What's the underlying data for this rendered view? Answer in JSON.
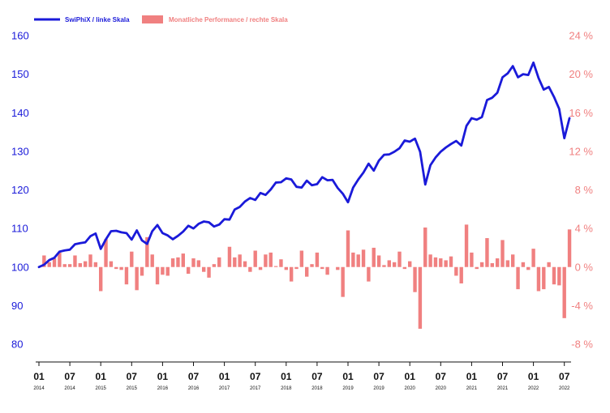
{
  "chart_data": {
    "type": "line+bar",
    "legend": {
      "placement": "top-left",
      "line_label": "SwiPhiX / linke Skala",
      "bar_label": "Monatliche Performance / rechte Skala"
    },
    "colors": {
      "line": "#1a1ad9",
      "bars": "#f08080",
      "axis": "#111111"
    },
    "y_left": {
      "min": 80,
      "max": 160,
      "ticks": [
        "80",
        "90",
        "100",
        "110",
        "120",
        "130",
        "140",
        "150",
        "160"
      ]
    },
    "y_right": {
      "min": -8,
      "max": 24,
      "unit": "%",
      "ticks": [
        "-8 %",
        "-4 %",
        "0 %",
        "4 %",
        "8 %",
        "12 %",
        "16 %",
        "20 %",
        "24 %"
      ]
    },
    "x_ticks": [
      {
        "month": "01",
        "year": "2014"
      },
      {
        "month": "07",
        "year": "2014"
      },
      {
        "month": "01",
        "year": "2015"
      },
      {
        "month": "07",
        "year": "2015"
      },
      {
        "month": "01",
        "year": "2016"
      },
      {
        "month": "07",
        "year": "2016"
      },
      {
        "month": "01",
        "year": "2017"
      },
      {
        "month": "07",
        "year": "2017"
      },
      {
        "month": "01",
        "year": "2018"
      },
      {
        "month": "07",
        "year": "2018"
      },
      {
        "month": "01",
        "year": "2019"
      },
      {
        "month": "07",
        "year": "2019"
      },
      {
        "month": "01",
        "year": "2020"
      },
      {
        "month": "07",
        "year": "2020"
      },
      {
        "month": "01",
        "year": "2021"
      },
      {
        "month": "07",
        "year": "2021"
      },
      {
        "month": "01",
        "year": "2022"
      },
      {
        "month": "07",
        "year": "2022"
      }
    ],
    "series": [
      {
        "name": "SwiPhiX / linke Skala",
        "axis": "left",
        "values": [
          100.0,
          100.6,
          101.8,
          102.4,
          104.0,
          104.3,
          104.5,
          105.9,
          106.2,
          106.4,
          108.0,
          108.7,
          104.7,
          107.2,
          109.3,
          109.4,
          109.0,
          108.8,
          107.1,
          109.5,
          106.9,
          106.0,
          109.3,
          110.9,
          108.8,
          108.2,
          107.2,
          108.1,
          109.2,
          110.7,
          110.0,
          111.2,
          111.8,
          111.6,
          110.5,
          111.0,
          112.4,
          112.3,
          114.9,
          115.6,
          117.0,
          117.9,
          117.4,
          119.2,
          118.7,
          120.1,
          121.9,
          122.0,
          123.0,
          122.7,
          120.8,
          120.6,
          122.4,
          121.2,
          121.5,
          123.3,
          122.5,
          122.6,
          120.5,
          119.0,
          116.8,
          120.6,
          122.7,
          124.5,
          126.8,
          125.0,
          127.6,
          129.1,
          129.2,
          129.9,
          130.8,
          132.8,
          132.5,
          133.3,
          129.9,
          121.4,
          126.4,
          128.4,
          129.9,
          131.0,
          131.9,
          132.7,
          131.5,
          136.6,
          138.6,
          138.2,
          138.9,
          143.3,
          143.9,
          145.2,
          149.2,
          150.2,
          152.1,
          149.2,
          150.0,
          149.8,
          153.0,
          149.0,
          146.0,
          146.7,
          144.1,
          141.0,
          133.4,
          138.6
        ]
      },
      {
        "name": "Monatliche Performance / rechte Skala",
        "axis": "right",
        "values": [
          0.0,
          1.2,
          0.5,
          0.9,
          1.5,
          0.3,
          0.3,
          1.2,
          0.4,
          0.6,
          1.3,
          0.5,
          -2.5,
          2.9,
          0.6,
          -0.2,
          -0.3,
          -1.8,
          1.6,
          -2.4,
          -0.9,
          3.1,
          1.3,
          -1.8,
          -0.8,
          -0.9,
          0.9,
          1.0,
          1.4,
          -0.7,
          0.9,
          0.7,
          -0.5,
          -1.1,
          0.3,
          1.0,
          0.0,
          2.1,
          1.0,
          1.3,
          0.6,
          -0.5,
          1.7,
          -0.3,
          1.3,
          1.5,
          0.1,
          0.8,
          -0.3,
          -1.5,
          -0.2,
          1.7,
          -1.0,
          0.3,
          1.5,
          -0.2,
          -0.8,
          0.0,
          -0.3,
          -3.1,
          3.8,
          1.5,
          1.3,
          1.8,
          -1.5,
          2.0,
          1.2,
          0.2,
          0.7,
          0.5,
          1.6,
          -0.2,
          0.6,
          -2.6,
          -6.4,
          4.1,
          1.3,
          1.0,
          0.9,
          0.7,
          1.1,
          -0.9,
          -1.7,
          4.4,
          1.5,
          -0.2,
          0.5,
          3.0,
          0.4,
          0.9,
          2.8,
          0.7,
          1.3,
          -2.3,
          0.5,
          -0.3,
          1.9,
          -2.5,
          -2.3,
          0.5,
          -1.8,
          -1.9,
          -5.3,
          3.9
        ]
      }
    ]
  }
}
